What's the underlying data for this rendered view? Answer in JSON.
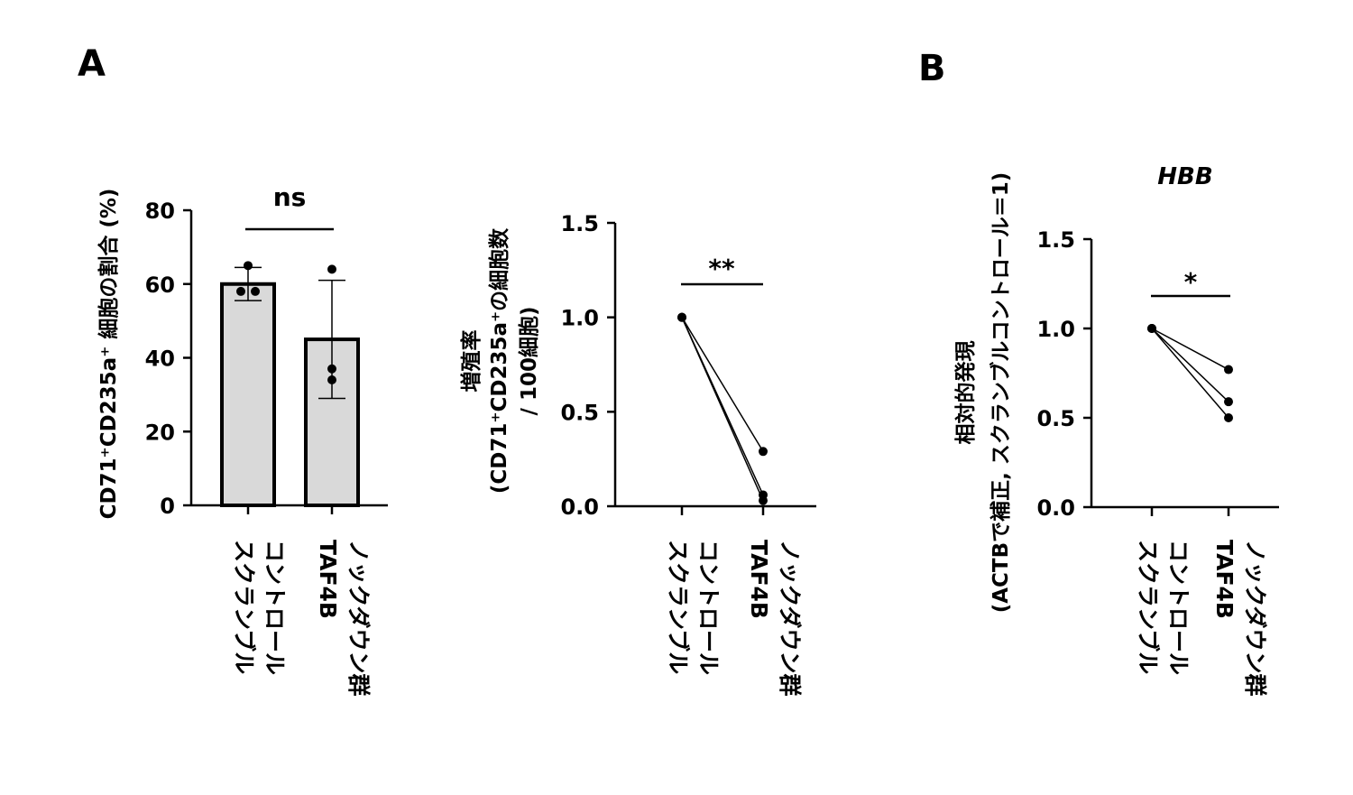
{
  "panels": {
    "A_label": "A",
    "B_label": "B"
  },
  "chart_data": [
    {
      "type": "bar",
      "panel": "A",
      "ylabel": "CD71⁺CD235a⁺ 細胞の割合 (%)",
      "ylim": [
        0,
        80
      ],
      "yticks": [
        0,
        20,
        40,
        60,
        80
      ],
      "categories": [
        [
          "スクランブル",
          "コントロール"
        ],
        [
          "TAF4B",
          "ノックダウン群"
        ]
      ],
      "bars": [
        {
          "mean": 60,
          "error_low": 55.5,
          "error_high": 64.5,
          "points": [
            65,
            58,
            58
          ]
        },
        {
          "mean": 45,
          "error_low": 29,
          "error_high": 61,
          "points": [
            64,
            37,
            34
          ]
        }
      ],
      "significance": "ns",
      "bar_color": "#d9d9d9"
    },
    {
      "type": "line",
      "panel": "A",
      "ylabel": [
        "増殖率",
        "(CD71⁺CD235a⁺の細胞数",
        "/ 100細胞)"
      ],
      "ylim": [
        0,
        1.5
      ],
      "yticks": [
        "0.0",
        "0.5",
        "1.0",
        "1.5"
      ],
      "categories": [
        [
          "スクランブル",
          "コントロール"
        ],
        [
          "TAF4B",
          "ノックダウン群"
        ]
      ],
      "series": [
        {
          "values": [
            1.0,
            0.29
          ]
        },
        {
          "values": [
            1.0,
            0.06
          ]
        },
        {
          "values": [
            1.0,
            0.03
          ]
        }
      ],
      "significance": "**"
    },
    {
      "type": "line",
      "panel": "B",
      "title": "HBB",
      "ylabel": [
        "相対的発現",
        "(ACTBで補正, スクランブルコントロール＝1)"
      ],
      "ylim": [
        0,
        1.5
      ],
      "yticks": [
        "0.0",
        "0.5",
        "1.0",
        "1.5"
      ],
      "categories": [
        [
          "スクランブル",
          "コントロール"
        ],
        [
          "TAF4B",
          "ノックダウン群"
        ]
      ],
      "series": [
        {
          "values": [
            1.0,
            0.77
          ]
        },
        {
          "values": [
            1.0,
            0.59
          ]
        },
        {
          "values": [
            1.0,
            0.5
          ]
        }
      ],
      "significance": "*"
    }
  ]
}
